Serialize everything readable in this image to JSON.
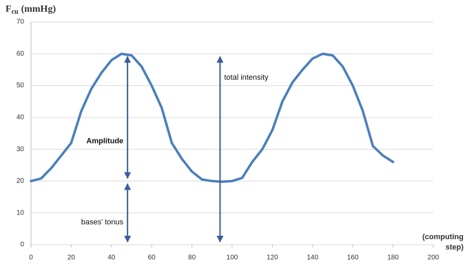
{
  "chart_data": {
    "type": "line",
    "y_label": {
      "main": "F",
      "sub": "cu",
      "unit": "(mmHg)"
    },
    "x_label": [
      "(computing",
      "step)"
    ],
    "x": [
      0,
      5,
      10,
      15,
      20,
      25,
      30,
      35,
      40,
      45,
      50,
      55,
      60,
      65,
      70,
      75,
      80,
      85,
      90,
      95,
      100,
      105,
      110,
      115,
      120,
      125,
      130,
      135,
      140,
      145,
      150,
      155,
      160,
      165,
      170,
      175,
      180
    ],
    "series": [
      {
        "color": "#4a7ebb",
        "values": [
          20,
          20.8,
          24,
          28,
          32,
          42,
          49,
          54,
          58,
          60,
          59.5,
          56,
          50,
          43,
          32,
          27,
          23,
          20.5,
          20,
          19.8,
          20,
          21,
          26,
          30,
          36,
          45,
          51,
          55,
          58.5,
          60,
          59.5,
          56,
          50,
          42,
          31,
          28,
          26
        ]
      }
    ],
    "xlim": [
      0,
      200
    ],
    "xticks": [
      0,
      20,
      40,
      60,
      80,
      100,
      120,
      140,
      160,
      180,
      200
    ],
    "ylim": [
      0,
      70
    ],
    "yticks": [
      0,
      10,
      20,
      30,
      40,
      50,
      60,
      70
    ],
    "grid": true,
    "annotations": [
      {
        "text": "Amplitude",
        "x": 48,
        "from": 20,
        "to": 60
      },
      {
        "text": "bases' tonus",
        "x": 48,
        "from": 0,
        "to": 20
      },
      {
        "text": "total intensity",
        "x": 94,
        "from": 0,
        "to": 60
      }
    ]
  }
}
